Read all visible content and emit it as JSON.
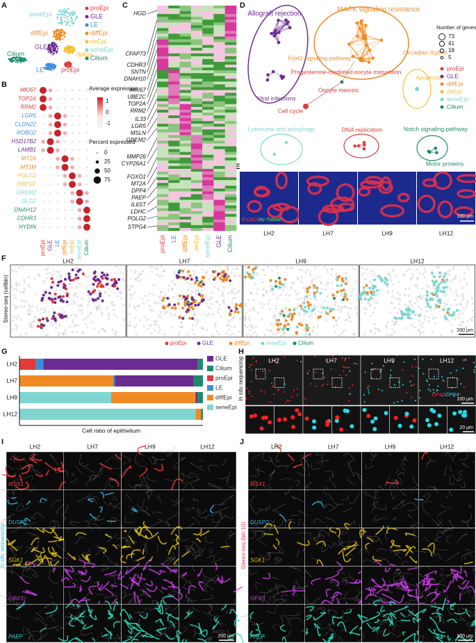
{
  "panel_letters": [
    "A",
    "B",
    "C",
    "D",
    "E",
    "F",
    "G",
    "H",
    "I",
    "J"
  ],
  "a": {
    "umap_labels": [
      "seneEpi",
      "diffEpi",
      "GLE",
      "deEpi",
      "Cilium",
      "LE",
      "proEpi"
    ],
    "legend": [
      "proEpi",
      "GLE",
      "LE",
      "diffEpi",
      "deEpi",
      "seneEpi",
      "Cilium"
    ],
    "colors": [
      "#e03a3a",
      "#6a2c91",
      "#3a8fd9",
      "#f08a24",
      "#f2c033",
      "#7fd6d0",
      "#1e8a6a"
    ]
  },
  "b": {
    "genes": [
      "MKI67",
      "TOP2A",
      "RRM2",
      "LGR5",
      "CLDN22",
      "ROBO2",
      "HSD17B2",
      "LAMB1",
      "MT2A",
      "MT1M",
      "POLG2",
      "HBEGF",
      "GREM2",
      "DLG2",
      "DNAH12",
      "CDHR3",
      "HYDIN"
    ],
    "clusters": [
      "proEpi",
      "GLE",
      "LE",
      "diffEpi",
      "deEpi",
      "seneEpi",
      "Cilium"
    ],
    "color_title": "Average expression",
    "color_ticks": [
      1,
      0,
      -1
    ],
    "size_title": "Percent expressed",
    "size_ticks": [
      0,
      25,
      50,
      75
    ]
  },
  "c": {
    "genes": [
      "HGD",
      "CFAP73",
      "CDHR3",
      "SNTN",
      "DNAH10",
      "MKI67",
      "UBE2C",
      "TOP2A",
      "RRM2",
      "IL33",
      "LGR5",
      "MSLN",
      "GREM2",
      "MMP26",
      "CYP26A1",
      "FOXO1",
      "MT2A",
      "DPP4",
      "PAEP",
      "IL6ST",
      "LDHC",
      "POLG2",
      "STPG4"
    ],
    "clusters": [
      "proEpi",
      "LE",
      "diffEpi",
      "deEpi",
      "seneEpi",
      "GLE",
      "Cilium"
    ]
  },
  "d": {
    "pathways": [
      "Allograft rejection",
      "Viral infections",
      "MAPK signaling resistance",
      "FoxO signaling pathway",
      "Circadian rhythm",
      "Progesterone-mediated oocyte maturation",
      "Oocyte meiosis",
      "Cell cycle",
      "Apoptosis",
      "Lysosome and autophagy",
      "DNA replication",
      "Notch signaling pathway",
      "Motor proteins"
    ],
    "size_title": "Number of genes",
    "size_ticks": [
      73,
      41,
      18,
      5
    ],
    "legend": [
      "proEpi",
      "GLE",
      "diffEpi",
      "deEpi",
      "seneEpi",
      "Cilium"
    ]
  },
  "e": {
    "stain": [
      "E-CAD",
      "/Ac-Tubulin"
    ],
    "scale": "100 μm",
    "samples": [
      "LH2",
      "LH7",
      "LH9",
      "LH12"
    ]
  },
  "f": {
    "y_label": "Stereo-seq (cellbin)",
    "samples": [
      "LH2",
      "LH7",
      "LH9",
      "LH12"
    ],
    "scale": "200 μm",
    "legend": [
      "proEpi",
      "GLE",
      "diffEpi",
      "seneEpi",
      "Cilium"
    ]
  },
  "chart_data": {
    "type": "bar",
    "orientation": "horizontal",
    "stacked": true,
    "x_label": "Cell ratio of epithelium",
    "categories": [
      "LH2",
      "LH7",
      "LH9",
      "LH12"
    ],
    "xlim": [
      0,
      100
    ],
    "series": [
      {
        "name": "GLE",
        "color": "#6a2c91",
        "values": [
          84,
          43,
          1,
          0
        ]
      },
      {
        "name": "Cilium",
        "color": "#1e8a6a",
        "values": [
          3,
          5,
          3,
          1
        ]
      },
      {
        "name": "proEpi",
        "color": "#e03a3a",
        "values": [
          9,
          0,
          0,
          0
        ]
      },
      {
        "name": "LE",
        "color": "#3a8fd9",
        "values": [
          4,
          1,
          0,
          0
        ]
      },
      {
        "name": "diffEpi",
        "color": "#f08a24",
        "values": [
          0,
          51,
          46,
          3
        ]
      },
      {
        "name": "seneEpi",
        "color": "#7fd6d0",
        "values": [
          0,
          0,
          50,
          96
        ]
      }
    ]
  },
  "h": {
    "samples": [
      "LH2",
      "LH7",
      "LH9",
      "LH12"
    ],
    "y_label": "In situ sequencing",
    "stain": [
      "GPX3",
      "/DPP4"
    ],
    "scale": "100 μm",
    "scale_inset": "20 μm"
  },
  "i": {
    "samples": [
      "LH2",
      "LH7",
      "LH9",
      "LH12"
    ],
    "y_label": "In situ sequencing",
    "genes": [
      "MSX1",
      "DUSP2",
      "SGK1",
      "GPX3",
      "PAEP"
    ],
    "scale": "200 μm"
  },
  "j": {
    "samples": [
      "LH2",
      "LH7",
      "LH9",
      "LH12"
    ],
    "y_label": "Stereo-seq (bin 10)",
    "genes": [
      "MSX1",
      "DUSP2",
      "SGK1",
      "GPX3",
      "PAEP"
    ],
    "scale": "200 μm"
  }
}
